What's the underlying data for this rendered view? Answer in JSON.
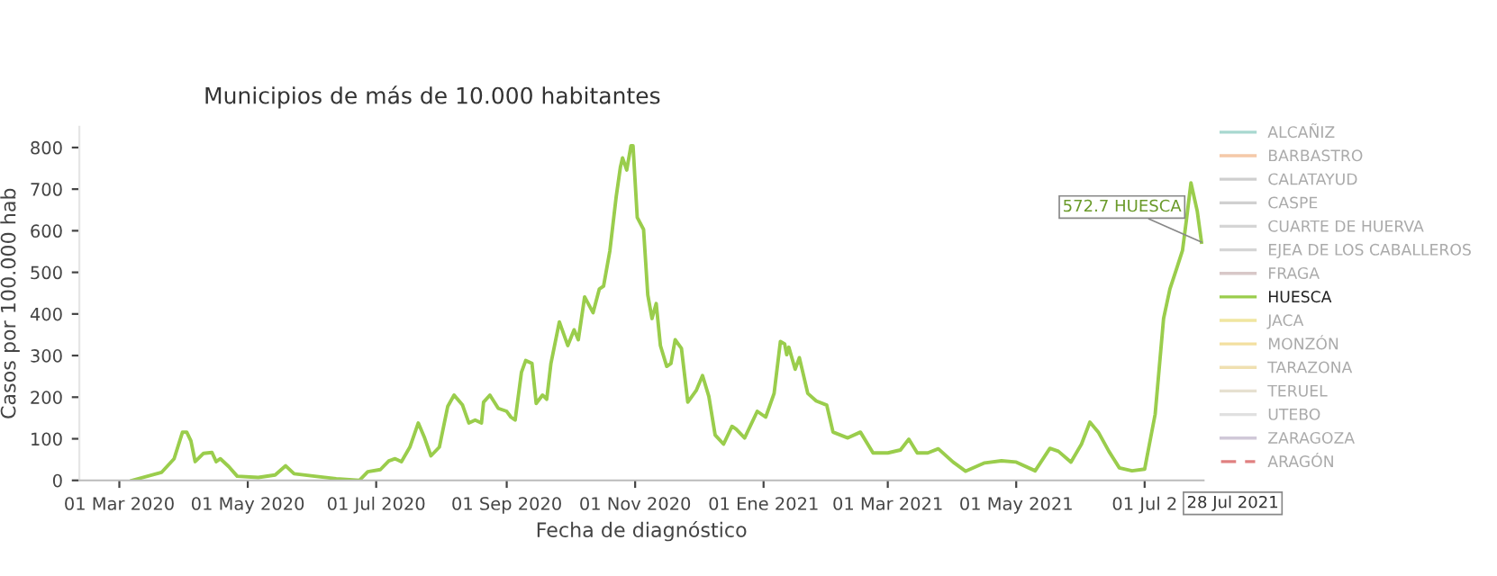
{
  "chart_data": {
    "type": "line",
    "title": "Municipios de más de 10.000 habitantes",
    "xlabel": "Fecha de diagnóstico",
    "ylabel": "Casos por 100.000 hab",
    "xlim": [
      "2020-02-11",
      "2021-07-29"
    ],
    "xticks": [
      {
        "value": "2020-03-01",
        "label": "01 Mar 2020"
      },
      {
        "value": "2020-05-01",
        "label": "01 May 2020"
      },
      {
        "value": "2020-07-01",
        "label": "01 Jul 2020"
      },
      {
        "value": "2020-09-01",
        "label": "01 Sep 2020"
      },
      {
        "value": "2020-11-01",
        "label": "01 Nov 2020"
      },
      {
        "value": "2021-01-01",
        "label": "01 Ene 2021"
      },
      {
        "value": "2021-03-01",
        "label": "01 Mar 2021"
      },
      {
        "value": "2021-05-01",
        "label": "01 May 2021"
      },
      {
        "value": "2021-07-01",
        "label": "01 Jul 2"
      }
    ],
    "ylim": [
      0,
      850
    ],
    "yticks": [
      0,
      100,
      200,
      300,
      400,
      500,
      600,
      700,
      800
    ],
    "grid": false,
    "legend": "right",
    "marker": "none",
    "annotations": [
      {
        "text": "572.7 HUESCA",
        "x": "2021-07-28",
        "y": 572.7
      },
      "28 Jul 2021"
    ],
    "series": [
      {
        "name": "ALCAÑIZ",
        "color": "#a8d8d0"
      },
      {
        "name": "BARBASTRO",
        "color": "#f5c9a8"
      },
      {
        "name": "CALATAYUD",
        "color": "#cfcfcf"
      },
      {
        "name": "CASPE",
        "color": "#d0d0d0"
      },
      {
        "name": "CUARTE DE HUERVA",
        "color": "#d5d5d5"
      },
      {
        "name": "EJEA DE LOS CABALLEROS",
        "color": "#d5d5d5"
      },
      {
        "name": "FRAGA",
        "color": "#d8c8c8"
      },
      {
        "name": "HUESCA",
        "color": "#9acd4c",
        "x": [
          "2020-03-07",
          "2020-03-21",
          "2020-03-27",
          "2020-03-31",
          "2020-04-02",
          "2020-04-04",
          "2020-04-06",
          "2020-04-10",
          "2020-04-14",
          "2020-04-16",
          "2020-04-18",
          "2020-04-22",
          "2020-04-26",
          "2020-05-06",
          "2020-05-14",
          "2020-05-19",
          "2020-05-23",
          "2020-05-31",
          "2020-06-12",
          "2020-06-23",
          "2020-06-27",
          "2020-07-03",
          "2020-07-07",
          "2020-07-10",
          "2020-07-13",
          "2020-07-17",
          "2020-07-21",
          "2020-07-24",
          "2020-07-27",
          "2020-07-31",
          "2020-08-04",
          "2020-08-07",
          "2020-08-11",
          "2020-08-14",
          "2020-08-17",
          "2020-08-20",
          "2020-08-21",
          "2020-08-24",
          "2020-08-28",
          "2020-09-01",
          "2020-09-03",
          "2020-09-05",
          "2020-09-08",
          "2020-09-10",
          "2020-09-13",
          "2020-09-15",
          "2020-09-18",
          "2020-09-20",
          "2020-09-22",
          "2020-09-26",
          "2020-09-30",
          "2020-10-03",
          "2020-10-05",
          "2020-10-08",
          "2020-10-12",
          "2020-10-15",
          "2020-10-17",
          "2020-10-20",
          "2020-10-23",
          "2020-10-25",
          "2020-10-26",
          "2020-10-28",
          "2020-10-30",
          "2020-10-31",
          "2020-11-02",
          "2020-11-05",
          "2020-11-07",
          "2020-11-09",
          "2020-11-11",
          "2020-11-13",
          "2020-11-16",
          "2020-11-18",
          "2020-11-20",
          "2020-11-23",
          "2020-11-26",
          "2020-11-30",
          "2020-12-03",
          "2020-12-06",
          "2020-12-09",
          "2020-12-13",
          "2020-12-17",
          "2020-12-19",
          "2020-12-23",
          "2020-12-29",
          "2021-01-02",
          "2021-01-06",
          "2021-01-09",
          "2021-01-11",
          "2021-01-12",
          "2021-01-13",
          "2021-01-16",
          "2021-01-18",
          "2021-01-22",
          "2021-01-26",
          "2021-01-31",
          "2021-02-03",
          "2021-02-10",
          "2021-02-16",
          "2021-02-22",
          "2021-03-01",
          "2021-03-07",
          "2021-03-11",
          "2021-03-15",
          "2021-03-20",
          "2021-03-25",
          "2021-04-01",
          "2021-04-07",
          "2021-04-16",
          "2021-04-24",
          "2021-05-01",
          "2021-05-10",
          "2021-05-17",
          "2021-05-21",
          "2021-05-27",
          "2021-06-01",
          "2021-06-05",
          "2021-06-09",
          "2021-06-14",
          "2021-06-19",
          "2021-06-25",
          "2021-07-01",
          "2021-07-06",
          "2021-07-10",
          "2021-07-13",
          "2021-07-16",
          "2021-07-19",
          "2021-07-21",
          "2021-07-23",
          "2021-07-26",
          "2021-07-28"
        ],
        "values": [
          0,
          19,
          52,
          116,
          116,
          95,
          45,
          65,
          67,
          45,
          52,
          33,
          10,
          7,
          13,
          35,
          16,
          11,
          4,
          0,
          21,
          26,
          47,
          52,
          45,
          80,
          138,
          102,
          59,
          80,
          178,
          205,
          181,
          138,
          145,
          138,
          188,
          205,
          173,
          166,
          152,
          145,
          260,
          288,
          281,
          185,
          205,
          195,
          281,
          381,
          324,
          362,
          338,
          441,
          403,
          460,
          467,
          552,
          682,
          753,
          775,
          746,
          804,
          804,
          632,
          603,
          446,
          389,
          425,
          324,
          274,
          281,
          338,
          317,
          188,
          216,
          252,
          202,
          109,
          87,
          130,
          123,
          102,
          166,
          152,
          209,
          334,
          328,
          302,
          320,
          267,
          295,
          209,
          191,
          181,
          116,
          102,
          116,
          66,
          66,
          73,
          99,
          66,
          66,
          76,
          44,
          22,
          42,
          47,
          44,
          23,
          77,
          70,
          44,
          87,
          140,
          116,
          70,
          30,
          23,
          27,
          159,
          389,
          460,
          506,
          553,
          632,
          715,
          647,
          572.7
        ]
      },
      {
        "name": "JACA",
        "color": "#f0e6a0"
      },
      {
        "name": "MONZÓN",
        "color": "#f3e0a0"
      },
      {
        "name": "TARAZONA",
        "color": "#f0e0b0"
      },
      {
        "name": "TERUEL",
        "color": "#e6e0d0"
      },
      {
        "name": "UTEBO",
        "color": "#e0e0e0"
      },
      {
        "name": "ZARAGOZA",
        "color": "#d0c8d8"
      },
      {
        "name": "ARAGÓN",
        "color": "#e08080",
        "line_style": "dashed"
      }
    ]
  }
}
